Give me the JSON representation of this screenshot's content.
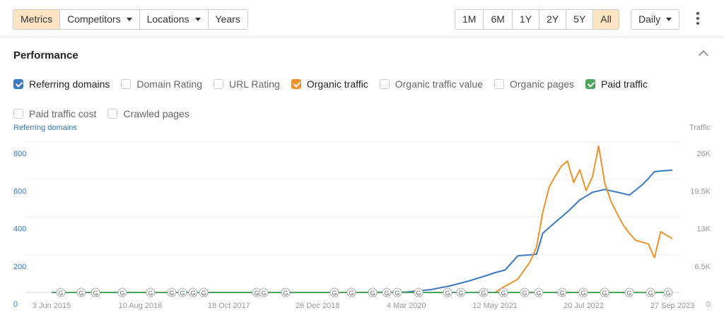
{
  "toolbar": {
    "tabs": [
      {
        "label": "Metrics",
        "active": true
      },
      {
        "label": "Competitors",
        "dropdown": true
      },
      {
        "label": "Locations",
        "dropdown": true
      },
      {
        "label": "Years"
      }
    ]
  },
  "ranges": {
    "options": [
      "1M",
      "6M",
      "1Y",
      "2Y",
      "5Y",
      "All"
    ],
    "active": 5
  },
  "interval": "Daily",
  "section_title": "Performance",
  "metrics": [
    {
      "label": "Referring domains",
      "checked": true,
      "color": "#3a78c8"
    },
    {
      "label": "Domain Rating",
      "checked": false
    },
    {
      "label": "URL Rating",
      "checked": false
    },
    {
      "label": "Organic traffic",
      "checked": true,
      "color": "#f0922b"
    },
    {
      "label": "Organic traffic value",
      "checked": false
    },
    {
      "label": "Organic pages",
      "checked": false
    },
    {
      "label": "Paid traffic",
      "checked": true,
      "color": "#4aa55a"
    },
    {
      "label": "Paid traffic cost",
      "checked": false
    },
    {
      "label": "Crawled pages",
      "checked": false
    }
  ],
  "chart_data": {
    "type": "line",
    "ylabel": "Referring domains",
    "y2label": "Traffic",
    "x": [
      "2015-06-03",
      "2016-06-01",
      "2017-06-01",
      "2018-06-01",
      "2019-06-01",
      "2020-03-01",
      "2020-07-01",
      "2020-10-01",
      "2021-01-01",
      "2021-04-01",
      "2021-05-12",
      "2021-07-01",
      "2021-09-01",
      "2021-11-01",
      "2021-12-01",
      "2022-01-01",
      "2022-02-01",
      "2022-03-01",
      "2022-04-01",
      "2022-05-01",
      "2022-06-01",
      "2022-07-01",
      "2022-08-01",
      "2022-09-01",
      "2022-10-01",
      "2022-11-01",
      "2022-12-01",
      "2023-01-01",
      "2023-02-01",
      "2023-03-01",
      "2023-04-01",
      "2023-05-01",
      "2023-06-01",
      "2023-07-01",
      "2023-08-01",
      "2023-09-27"
    ],
    "series": [
      {
        "name": "Referring domains",
        "color": "#3a78c8",
        "values": [
          0,
          0,
          0,
          0,
          0,
          2,
          15,
          34,
          60,
          90,
          105,
          120,
          195,
          200,
          203,
          315,
          345,
          372,
          400,
          428,
          460,
          492,
          512,
          533,
          540,
          548,
          540,
          533,
          525,
          518,
          545,
          571,
          605,
          642,
          646,
          650
        ]
      },
      {
        "name": "Organic traffic",
        "color": "#f0922b",
        "axis": "y2",
        "values": [
          0,
          0,
          0,
          0,
          0,
          0,
          0,
          0,
          0,
          0,
          0,
          1100,
          2300,
          5400,
          7800,
          13900,
          18200,
          20000,
          21800,
          22700,
          19000,
          21200,
          17600,
          20000,
          25300,
          18800,
          15700,
          13500,
          11500,
          10200,
          9000,
          8700,
          8400,
          6000,
          10500,
          9300
        ]
      },
      {
        "name": "Paid traffic",
        "color": "#4aa55a",
        "axis": "y2",
        "values": [
          0,
          0,
          0,
          0,
          0,
          0,
          0,
          0,
          0,
          0,
          0,
          0,
          0,
          0,
          0,
          0,
          0,
          0,
          0,
          0,
          0,
          0,
          0,
          0,
          0,
          0,
          0,
          0,
          0,
          0,
          0,
          0,
          0,
          0,
          0,
          0
        ]
      }
    ],
    "xlim": [
      "2015-06-03",
      "2023-09-27"
    ],
    "xticks": [
      {
        "value": "2015-06-03",
        "label": "3 Jun 2015"
      },
      {
        "value": "2016-08-10",
        "label": "10 Aug 2016"
      },
      {
        "value": "2017-10-18",
        "label": "18 Oct 2017"
      },
      {
        "value": "2018-12-26",
        "label": "26 Dec 2018"
      },
      {
        "value": "2020-03-04",
        "label": "4 Mar 2020"
      },
      {
        "value": "2021-05-12",
        "label": "12 May 2021"
      },
      {
        "value": "2022-07-20",
        "label": "20 Jul 2022"
      },
      {
        "value": "2023-09-27",
        "label": "27 Sep 2023"
      }
    ],
    "ylim": [
      0,
      800
    ],
    "yticks": [
      0,
      200,
      400,
      600,
      800
    ],
    "y2lim": [
      0,
      26000
    ],
    "y2ticks": [
      0,
      {
        "value": 6500,
        "label": "6.5K"
      },
      {
        "value": 13000,
        "label": "13K"
      },
      {
        "value": 19500,
        "label": "19.5K"
      },
      {
        "value": 26000,
        "label": "26K"
      }
    ],
    "grid": true,
    "update_markers": {
      "label": "G",
      "x": [
        "2015-07-18",
        "2015-10-26",
        "2016-01-04",
        "2016-05-14",
        "2016-09-29",
        "2017-01-11",
        "2017-03-04",
        "2017-04-25",
        "2017-06-16",
        "2018-03-02",
        "2018-04-06",
        "2018-07-22",
        "2019-03-18",
        "2019-06-09",
        "2019-09-21",
        "2019-11-29",
        "2020-01-20",
        "2020-05-03",
        "2020-09-22",
        "2020-11-26",
        "2021-03-17",
        "2021-06-22",
        "2021-10-04",
        "2021-12-12",
        "2022-04-05",
        "2022-07-18",
        "2022-10-30",
        "2023-02-28",
        "2023-06-12",
        "2023-09-06"
      ]
    }
  }
}
